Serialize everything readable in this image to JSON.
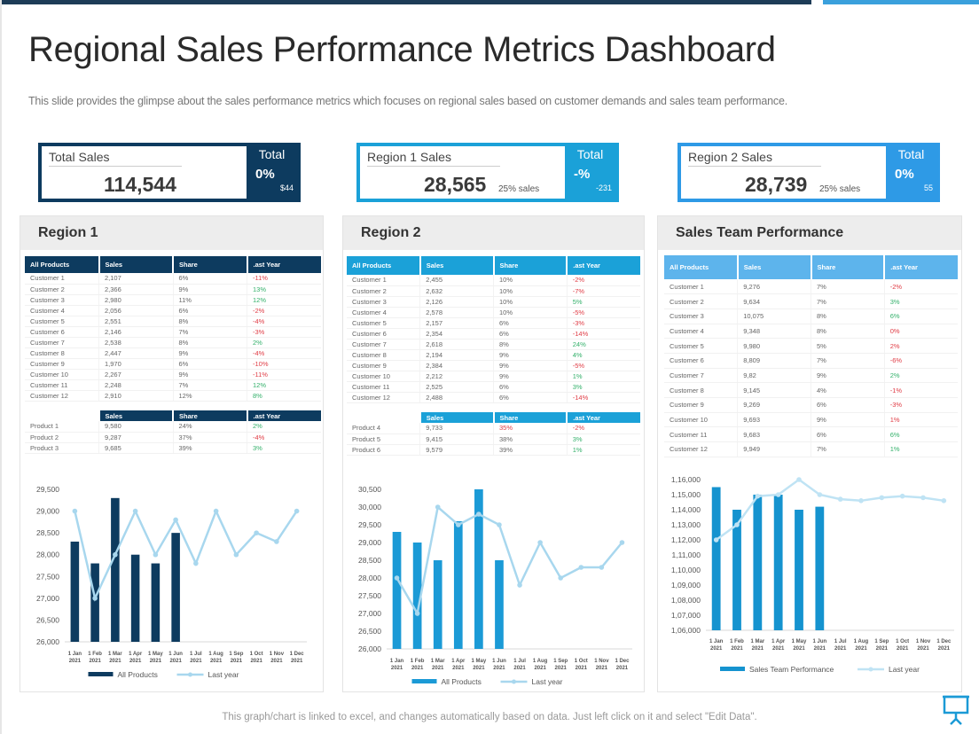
{
  "header": {
    "title": "Regional Sales Performance Metrics Dashboard",
    "subtitle": "This slide provides the glimpse about the sales performance metrics which focuses on regional sales based on customer demands and sales team performance."
  },
  "kpis": [
    {
      "label": "Total Sales",
      "value": "114,544",
      "sub": "",
      "side_title": "Total",
      "side_pct": "0%",
      "side_num": "$44",
      "color": "#0d3b5f"
    },
    {
      "label": "Region 1 Sales",
      "value": "28,565",
      "sub": "25% sales",
      "side_title": "Total",
      "side_pct": "-%",
      "side_num": "-231",
      "color": "#1ba1d8"
    },
    {
      "label": "Region 2 Sales",
      "value": "28,739",
      "sub": "25% sales",
      "side_title": "Total",
      "side_pct": "0%",
      "side_num": "55",
      "color": "#2e9ae6"
    }
  ],
  "panels": [
    {
      "title": "Region 1",
      "header_color": "#0d3b5f",
      "columns": [
        "All Products",
        "Sales",
        "Share",
        ".ast Year"
      ],
      "rows": [
        [
          "Customer 1",
          "2,107",
          "6%",
          "-11%",
          "red"
        ],
        [
          "Customer 2",
          "2,366",
          "9%",
          "13%",
          "green"
        ],
        [
          "Customer 3",
          "2,980",
          "11%",
          "12%",
          "green"
        ],
        [
          "Customer 4",
          "2,056",
          "6%",
          "-2%",
          "red"
        ],
        [
          "Customer 5",
          "2,551",
          "8%",
          "-4%",
          "red"
        ],
        [
          "Customer 6",
          "2,146",
          "7%",
          "-3%",
          "red"
        ],
        [
          "Customer 7",
          "2,538",
          "8%",
          "2%",
          "green"
        ],
        [
          "Customer 8",
          "2,447",
          "9%",
          "-4%",
          "red"
        ],
        [
          "Customer 9",
          "1,970",
          "6%",
          "-10%",
          "red"
        ],
        [
          "Customer 10",
          "2,267",
          "9%",
          "-11%",
          "red"
        ],
        [
          "Customer 11",
          "2,248",
          "7%",
          "12%",
          "green"
        ],
        [
          "Customer 12",
          "2,910",
          "12%",
          "8%",
          "green"
        ]
      ],
      "product_columns": [
        "",
        "Sales",
        "Share",
        ".ast Year"
      ],
      "products": [
        [
          "Product 1",
          "9,580",
          "24%",
          "2%",
          "green"
        ],
        [
          "Product 2",
          "9,287",
          "37%",
          "-4%",
          "red"
        ],
        [
          "Product 3",
          "9,685",
          "39%",
          "3%",
          "green"
        ]
      ]
    },
    {
      "title": "Region 2",
      "header_color": "#1ba1d8",
      "columns": [
        "All Products",
        "Sales",
        "Share",
        ".ast Year"
      ],
      "rows": [
        [
          "Customer 1",
          "2,455",
          "10%",
          "-2%",
          "red"
        ],
        [
          "Customer 2",
          "2,632",
          "10%",
          "-7%",
          "red"
        ],
        [
          "Customer 3",
          "2,126",
          "10%",
          "5%",
          "green"
        ],
        [
          "Customer 4",
          "2,578",
          "10%",
          "-5%",
          "red"
        ],
        [
          "Customer 5",
          "2,157",
          "6%",
          "-3%",
          "red"
        ],
        [
          "Customer 6",
          "2,354",
          "6%",
          "-14%",
          "red"
        ],
        [
          "Customer 7",
          "2,618",
          "8%",
          "24%",
          "green"
        ],
        [
          "Customer 8",
          "2,194",
          "9%",
          "4%",
          "green"
        ],
        [
          "Customer 9",
          "2,384",
          "9%",
          "-5%",
          "red"
        ],
        [
          "Customer 10",
          "2,212",
          "9%",
          "1%",
          "green"
        ],
        [
          "Customer 11",
          "2,525",
          "6%",
          "3%",
          "green"
        ],
        [
          "Customer 12",
          "2,488",
          "6%",
          "-14%",
          "red"
        ]
      ],
      "product_columns": [
        "",
        "Sales",
        "Share",
        ".ast Year"
      ],
      "products": [
        [
          "Product 4",
          "9,733",
          "35%",
          "-2%",
          "red",
          "red"
        ],
        [
          "Product 5",
          "9,415",
          "38%",
          "3%",
          "green"
        ],
        [
          "Product 6",
          "9,579",
          "39%",
          "1%",
          "green"
        ]
      ]
    },
    {
      "title": "Sales Team Performance",
      "header_color": "#5db4ec",
      "columns": [
        "All Products",
        "Sales",
        "Share",
        ".ast Year"
      ],
      "rows": [
        [
          "Customer 1",
          "9,276",
          "7%",
          "-2%",
          "red"
        ],
        [
          "Customer 2",
          "9,634",
          "7%",
          "3%",
          "green"
        ],
        [
          "Customer 3",
          "10,075",
          "8%",
          "6%",
          "green"
        ],
        [
          "Customer 4",
          "9,348",
          "8%",
          "0%",
          "red"
        ],
        [
          "Customer 5",
          "9,980",
          "5%",
          "2%",
          "red"
        ],
        [
          "Customer 6",
          "8,809",
          "7%",
          "-6%",
          "red"
        ],
        [
          "Customer 7",
          "9,82",
          "9%",
          "2%",
          "green"
        ],
        [
          "Customer 8",
          "9,145",
          "4%",
          "-1%",
          "red"
        ],
        [
          "Customer 9",
          "9,269",
          "6%",
          "-3%",
          "red"
        ],
        [
          "Customer 10",
          "9,693",
          "9%",
          "1%",
          "red"
        ],
        [
          "Customer 11",
          "9,683",
          "6%",
          "6%",
          "green"
        ],
        [
          "Customer 12",
          "9,949",
          "7%",
          "1%",
          "green"
        ]
      ]
    }
  ],
  "chart_data": [
    {
      "type": "bar+line",
      "x_labels": [
        [
          "1 Jan",
          "2021"
        ],
        [
          "1 Feb",
          "2021"
        ],
        [
          "1 Mar",
          "2021"
        ],
        [
          "1 Apr",
          "2021"
        ],
        [
          "1 May",
          "2021"
        ],
        [
          "1 Jun",
          "2021"
        ],
        [
          "1 Jul",
          "2021"
        ],
        [
          "1 Aug",
          "2021"
        ],
        [
          "1 Sep",
          "2021"
        ],
        [
          "1 Oct",
          "2021"
        ],
        [
          "1 Nov",
          "2021"
        ],
        [
          "1 Dec",
          "2021"
        ]
      ],
      "ylim": [
        26000,
        29500
      ],
      "y_ticks": [
        26000,
        26500,
        27000,
        27500,
        28000,
        28500,
        29000,
        29500
      ],
      "y_tick_labels": [
        "26,000",
        "26,500",
        "27,000",
        "27,500",
        "28,000",
        "28,500",
        "29,000",
        "29,500"
      ],
      "series": [
        {
          "name": "All Products",
          "type": "bar",
          "color": "#0d3b5f",
          "values": [
            28300,
            27800,
            29300,
            28000,
            27800,
            28500
          ]
        },
        {
          "name": "Last year",
          "type": "line",
          "color": "#a8d7ee",
          "values": [
            29000,
            27000,
            28000,
            29000,
            28000,
            28800,
            27800,
            29000,
            28000,
            28500,
            28300,
            29000
          ]
        }
      ],
      "legend": "bottom"
    },
    {
      "type": "bar+line",
      "x_labels": [
        [
          "1 Jan",
          "2021"
        ],
        [
          "1 Feb",
          "2021"
        ],
        [
          "1 Mar",
          "2021"
        ],
        [
          "1 Apr",
          "2021"
        ],
        [
          "1 May",
          "2021"
        ],
        [
          "1 Jun",
          "2021"
        ],
        [
          "1 Jul",
          "2021"
        ],
        [
          "1 Aug",
          "2021"
        ],
        [
          "1 Sep",
          "2021"
        ],
        [
          "1 Oct",
          "2021"
        ],
        [
          "1 Nov",
          "2021"
        ],
        [
          "1 Dec",
          "2021"
        ]
      ],
      "ylim": [
        26000,
        30500
      ],
      "y_ticks": [
        26000,
        26500,
        27000,
        27500,
        28000,
        28500,
        29000,
        29500,
        30000,
        30500
      ],
      "y_tick_labels": [
        "26,000",
        "26,500",
        "27,000",
        "27,500",
        "28,000",
        "28,500",
        "29,000",
        "29,500",
        "30,000",
        "30,500"
      ],
      "series": [
        {
          "name": "All Products",
          "type": "bar",
          "color": "#1b9ad6",
          "values": [
            29300,
            29000,
            28500,
            29600,
            30500,
            28500
          ]
        },
        {
          "name": "Last year",
          "type": "line",
          "color": "#a8d7ee",
          "values": [
            28000,
            27000,
            30000,
            29500,
            29800,
            29500,
            27800,
            29000,
            28000,
            28300,
            28300,
            29000
          ]
        }
      ],
      "legend": "bottom"
    },
    {
      "type": "bar+line",
      "x_labels": [
        [
          "1 Jan",
          "2021"
        ],
        [
          "1 Feb",
          "2021"
        ],
        [
          "1 Mar",
          "2021"
        ],
        [
          "1 Apr",
          "2021"
        ],
        [
          "1 May",
          "2021"
        ],
        [
          "1 Jun",
          "2021"
        ],
        [
          "1 Jul",
          "2021"
        ],
        [
          "1 Aug",
          "2021"
        ],
        [
          "1 Sep",
          "2021"
        ],
        [
          "1 Oct",
          "2021"
        ],
        [
          "1 Nov",
          "2021"
        ],
        [
          "1 Dec",
          "2021"
        ]
      ],
      "ylim": [
        106000,
        116000
      ],
      "y_ticks": [
        106000,
        107000,
        108000,
        109000,
        110000,
        111000,
        112000,
        113000,
        114000,
        115000,
        116000
      ],
      "y_tick_labels": [
        "1,06,000",
        "1,07,000",
        "1,08,000",
        "1,09,000",
        "1,10,000",
        "1,11,000",
        "1,12,000",
        "1,13,000",
        "1,14,000",
        "1,15,000",
        "1,16,000"
      ],
      "series": [
        {
          "name": "Sales Team Performance",
          "type": "bar",
          "color": "#1593cf",
          "values": [
            115500,
            114000,
            115000,
            115000,
            114000,
            114200
          ]
        },
        {
          "name": "Last year",
          "type": "line",
          "color": "#bfe3f4",
          "values": [
            112000,
            113000,
            114900,
            115000,
            116000,
            115000,
            114700,
            114600,
            114800,
            114900,
            114800,
            114600
          ]
        }
      ],
      "legend": "bottom"
    }
  ],
  "footer": {
    "text": "This graph/chart is linked to excel, and changes automatically based on data. Just left click on it and select \"Edit Data\".",
    "icon": "presentation-easel-icon"
  }
}
